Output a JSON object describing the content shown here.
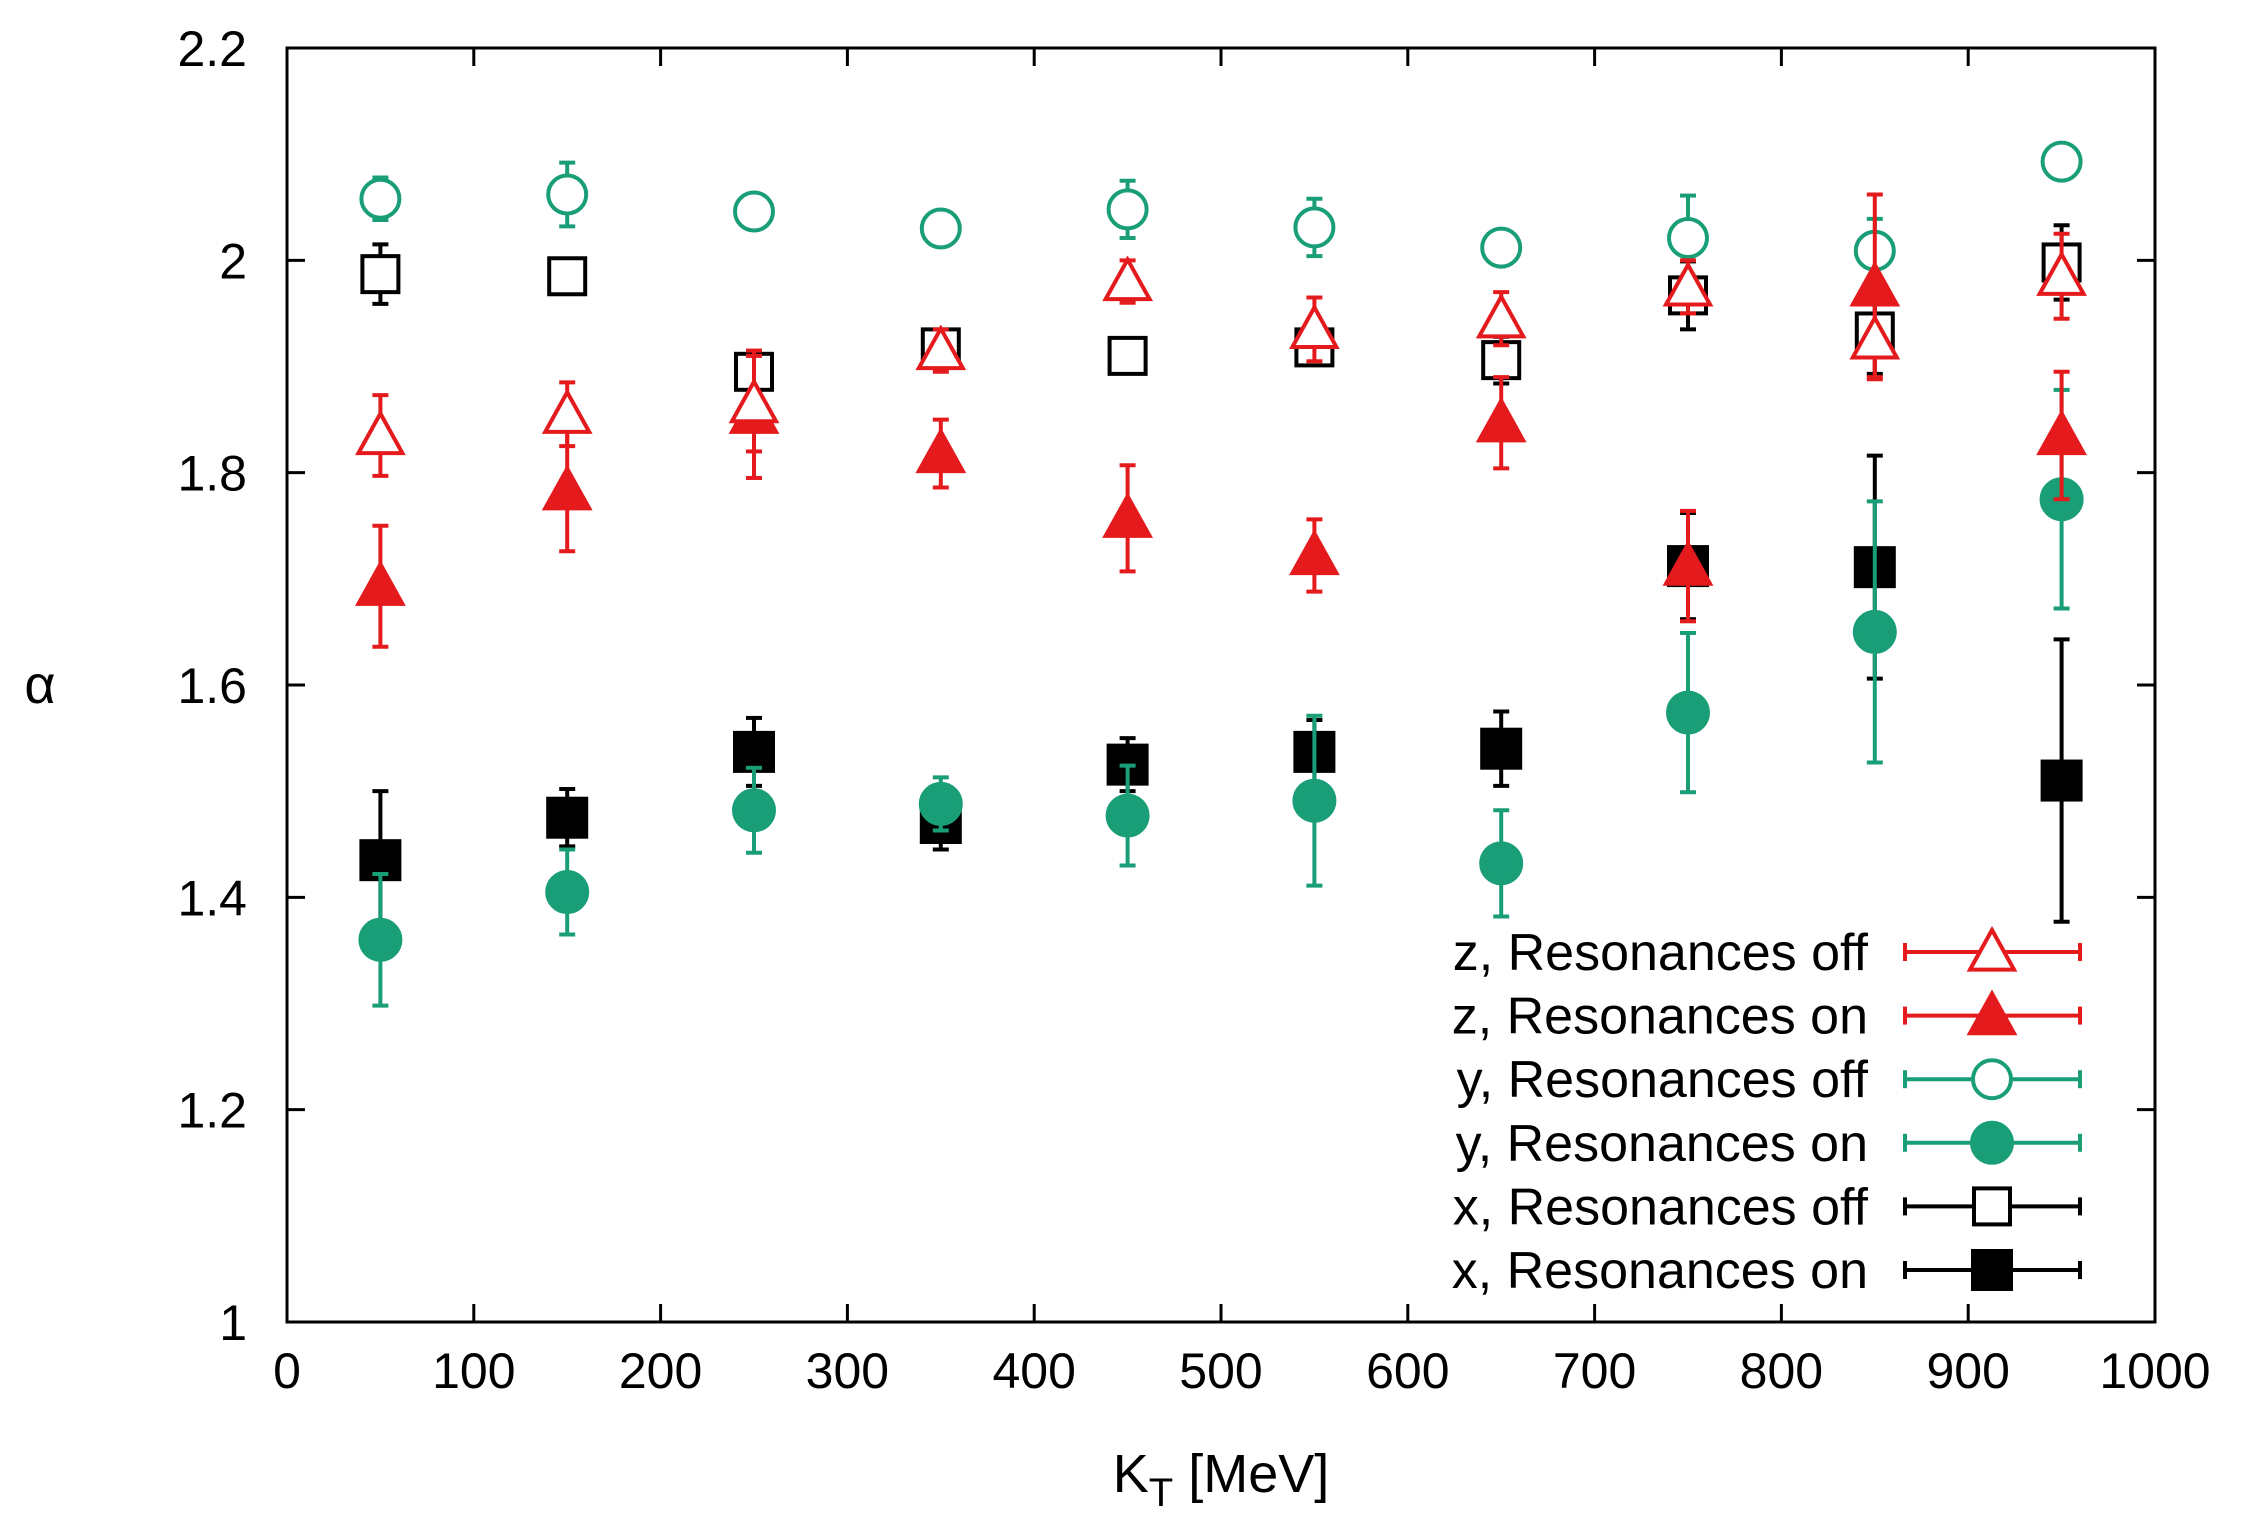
{
  "chart_data": {
    "type": "scatter",
    "title": "",
    "xlabel_main": "K",
    "xlabel_sub": "T",
    "xlabel_unit": " [MeV]",
    "ylabel": "α",
    "xlim": [
      0,
      1000
    ],
    "ylim": [
      1,
      2.2
    ],
    "xticks": [
      0,
      100,
      200,
      300,
      400,
      500,
      600,
      700,
      800,
      900,
      1000
    ],
    "yticks": [
      1,
      1.2,
      1.4,
      1.6,
      1.8,
      2,
      2.2
    ],
    "ytick_labels": [
      "1",
      "1.2",
      "1.4",
      "1.6",
      "1.8",
      "2",
      "2.2"
    ],
    "grid": false,
    "legend_position": "bottom-right",
    "x": [
      50,
      150,
      250,
      350,
      450,
      550,
      650,
      750,
      850,
      950
    ],
    "series": [
      {
        "name": "z, Resonances off",
        "color": "#e41a1c",
        "marker": "triangle",
        "filled": false,
        "values": [
          1.835,
          1.855,
          1.865,
          1.915,
          1.98,
          1.935,
          1.945,
          1.975,
          1.925,
          1.985
        ],
        "errors": [
          0.038,
          0.03,
          0.045,
          0.02,
          0.02,
          0.03,
          0.025,
          0.025,
          0.035,
          0.04
        ]
      },
      {
        "name": "z, Resonances on",
        "color": "#e41a1c",
        "marker": "triangle",
        "filled": true,
        "values": [
          1.693,
          1.783,
          1.855,
          1.818,
          1.757,
          1.722,
          1.847,
          1.712,
          1.975,
          1.835
        ],
        "errors": [
          0.057,
          0.057,
          0.06,
          0.032,
          0.05,
          0.034,
          0.043,
          0.052,
          0.087,
          0.06
        ]
      },
      {
        "name": "y, Resonances off",
        "color": "#1a9e77",
        "marker": "circle",
        "filled": false,
        "values": [
          2.058,
          2.062,
          2.046,
          2.03,
          2.048,
          2.031,
          2.012,
          2.021,
          2.009,
          2.093
        ],
        "errors": [
          0.02,
          0.03,
          0.01,
          0.012,
          0.027,
          0.027,
          0.012,
          0.04,
          0.03,
          0.012
        ]
      },
      {
        "name": "y, Resonances on",
        "color": "#1a9e77",
        "marker": "circle",
        "filled": true,
        "values": [
          1.36,
          1.405,
          1.482,
          1.488,
          1.477,
          1.491,
          1.432,
          1.574,
          1.65,
          1.775
        ],
        "errors": [
          0.062,
          0.04,
          0.04,
          0.025,
          0.047,
          0.08,
          0.05,
          0.075,
          0.123,
          0.103
        ]
      },
      {
        "name": "x, Resonances off",
        "color": "#000000",
        "marker": "square",
        "filled": false,
        "values": [
          1.987,
          1.985,
          1.895,
          1.918,
          1.91,
          1.918,
          1.906,
          1.967,
          1.933,
          1.998
        ],
        "errors": [
          0.028,
          0.012,
          0.018,
          0.015,
          0.015,
          0.015,
          0.022,
          0.032,
          0.04,
          0.035
        ]
      },
      {
        "name": "x, Resonances on",
        "color": "#000000",
        "marker": "square",
        "filled": true,
        "values": [
          1.435,
          1.475,
          1.537,
          1.47,
          1.525,
          1.537,
          1.54,
          1.712,
          1.711,
          1.51
        ],
        "errors": [
          0.065,
          0.027,
          0.032,
          0.025,
          0.025,
          0.03,
          0.035,
          0.05,
          0.105,
          0.133
        ]
      }
    ]
  }
}
